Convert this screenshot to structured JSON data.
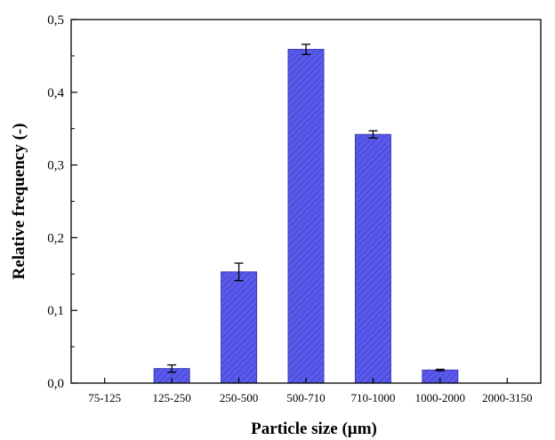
{
  "chart_data": {
    "type": "bar",
    "title": "",
    "xlabel": "Particle size (µm)",
    "ylabel": "Relative frequency (-)",
    "categories": [
      "75-125",
      "125-250",
      "250-500",
      "500-710",
      "710-1000",
      "1000-2000",
      "2000-3150"
    ],
    "values": [
      0.0,
      0.02,
      0.153,
      0.459,
      0.342,
      0.018,
      0.0
    ],
    "errors": [
      0.0,
      0.005,
      0.012,
      0.007,
      0.005,
      0.001,
      0.0
    ],
    "ylim": [
      0,
      0.5
    ],
    "yticks": [
      0.0,
      0.1,
      0.2,
      0.3,
      0.4,
      0.5
    ],
    "ytick_labels": [
      "0,0",
      "0,1",
      "0,2",
      "0,3",
      "0,4",
      "0,5"
    ],
    "grid": false,
    "bar_color": "#5a5aee",
    "hatch_color": "#3c3cb4",
    "axis_color": "#000000"
  }
}
